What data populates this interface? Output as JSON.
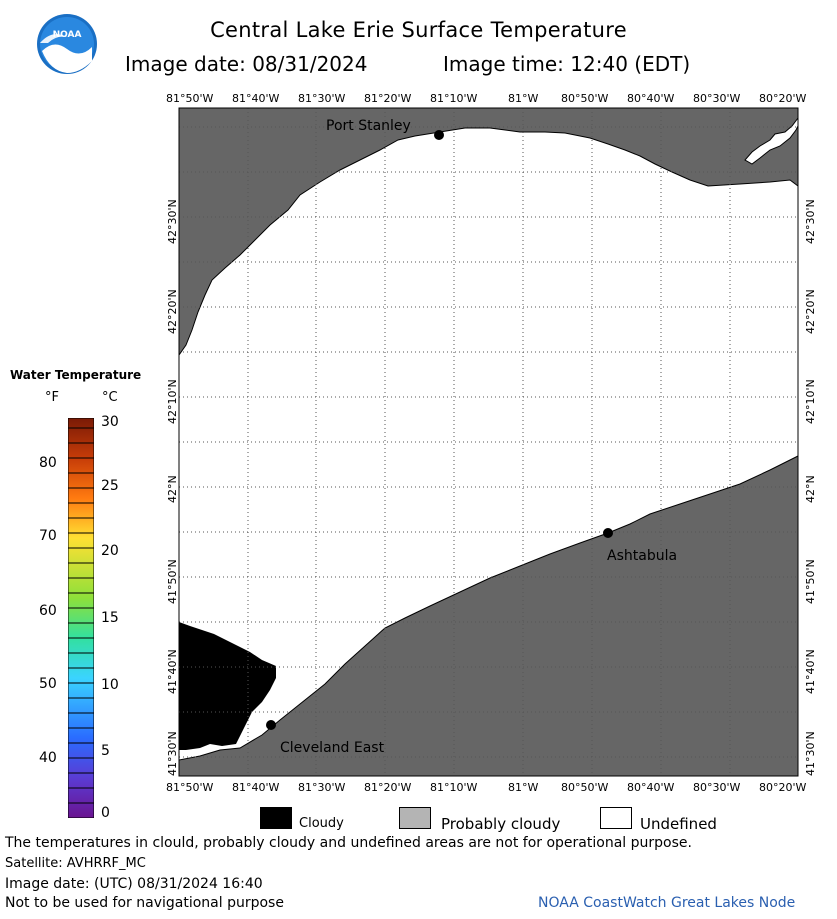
{
  "header": {
    "title": "Central Lake Erie Surface Temperature",
    "image_date_label": "Image date: 08/31/2024",
    "image_time_label": "Image time: 12:40 (EDT)",
    "logo_text": "NOAA"
  },
  "map": {
    "lon_ticks": [
      "81°50'W",
      "81°40'W",
      "81°30'W",
      "81°20'W",
      "81°10'W",
      "81°W",
      "80°50'W",
      "80°40'W",
      "80°30'W",
      "80°20'W"
    ],
    "lat_ticks": [
      "42°30'N",
      "42°20'N",
      "42°10'N",
      "42°N",
      "41°50'N",
      "41°40'N",
      "41°30'N"
    ],
    "places": [
      {
        "name": "Port Stanley"
      },
      {
        "name": "Ashtabula"
      },
      {
        "name": "Cleveland East"
      }
    ],
    "colors": {
      "land": "#666666",
      "water_undefined": "#ffffff",
      "cloudy": "#000000",
      "grid": "#555555"
    }
  },
  "colorbar": {
    "title": "Water Temperature",
    "unit_f": "°F",
    "unit_c": "°C",
    "f_ticks": [
      "80",
      "70",
      "60",
      "50",
      "40"
    ],
    "c_ticks": [
      "30",
      "25",
      "20",
      "15",
      "10",
      "5",
      "0"
    ]
  },
  "legend": {
    "cloudy": "Cloudy",
    "probably_cloudy": "Probably cloudy",
    "undefined": "Undefined",
    "colors": {
      "cloudy": "#000000",
      "probably_cloudy": "#b4b4b4",
      "undefined": "#ffffff"
    }
  },
  "footer": {
    "disclaimer": "The temperatures in clould, probably cloudy and undefined areas are not for operational purpose.",
    "satellite": "Satellite: AVHRRF_MC",
    "utc_date": "Image date: (UTC) 08/31/2024  16:40",
    "nav_warning": "Not to be used for navigational purpose",
    "credit": "NOAA CoastWatch Great Lakes Node"
  }
}
